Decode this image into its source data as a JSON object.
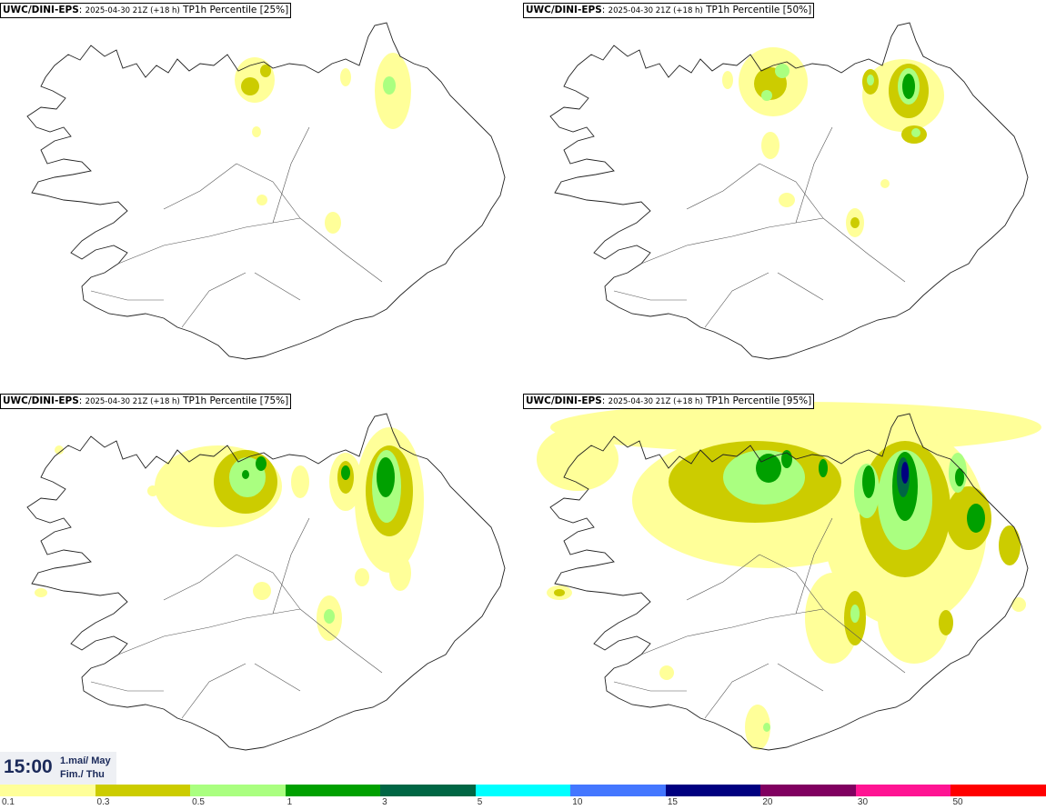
{
  "panels": [
    {
      "model": "UWC/DINI-EPS",
      "run": "2025-04-30 21Z (+18 h)",
      "field": "TP1h Percentile [25%]"
    },
    {
      "model": "UWC/DINI-EPS",
      "run": "2025-04-30 21Z (+18 h)",
      "field": "TP1h Percentile [50%]"
    },
    {
      "model": "UWC/DINI-EPS",
      "run": "2025-04-30 21Z (+18 h)",
      "field": "TP1h Percentile [75%]"
    },
    {
      "model": "UWC/DINI-EPS",
      "run": "2025-04-30 21Z (+18 h)",
      "field": "TP1h Percentile [95%]"
    }
  ],
  "time": {
    "clock": "15:00",
    "date_line1": "1.maí/ May",
    "date_line2": "Fim./ Thu"
  },
  "legend": {
    "ticks": [
      "0.1",
      "0.3",
      "0.5",
      "1",
      "3",
      "5",
      "10",
      "15",
      "20",
      "30",
      "50"
    ],
    "colors": [
      "#ffff99",
      "#cccc00",
      "#aaff80",
      "#00a000",
      "#006644",
      "#00ffff",
      "#4477ff",
      "#000080",
      "#800060",
      "#ff1493",
      "#ff0000"
    ]
  },
  "precip_colors": {
    "light": "#ffff99",
    "olive": "#cccc00",
    "lightgreen": "#aaff80",
    "green": "#00a000",
    "darkgreen": "#006644",
    "navy": "#000080"
  }
}
